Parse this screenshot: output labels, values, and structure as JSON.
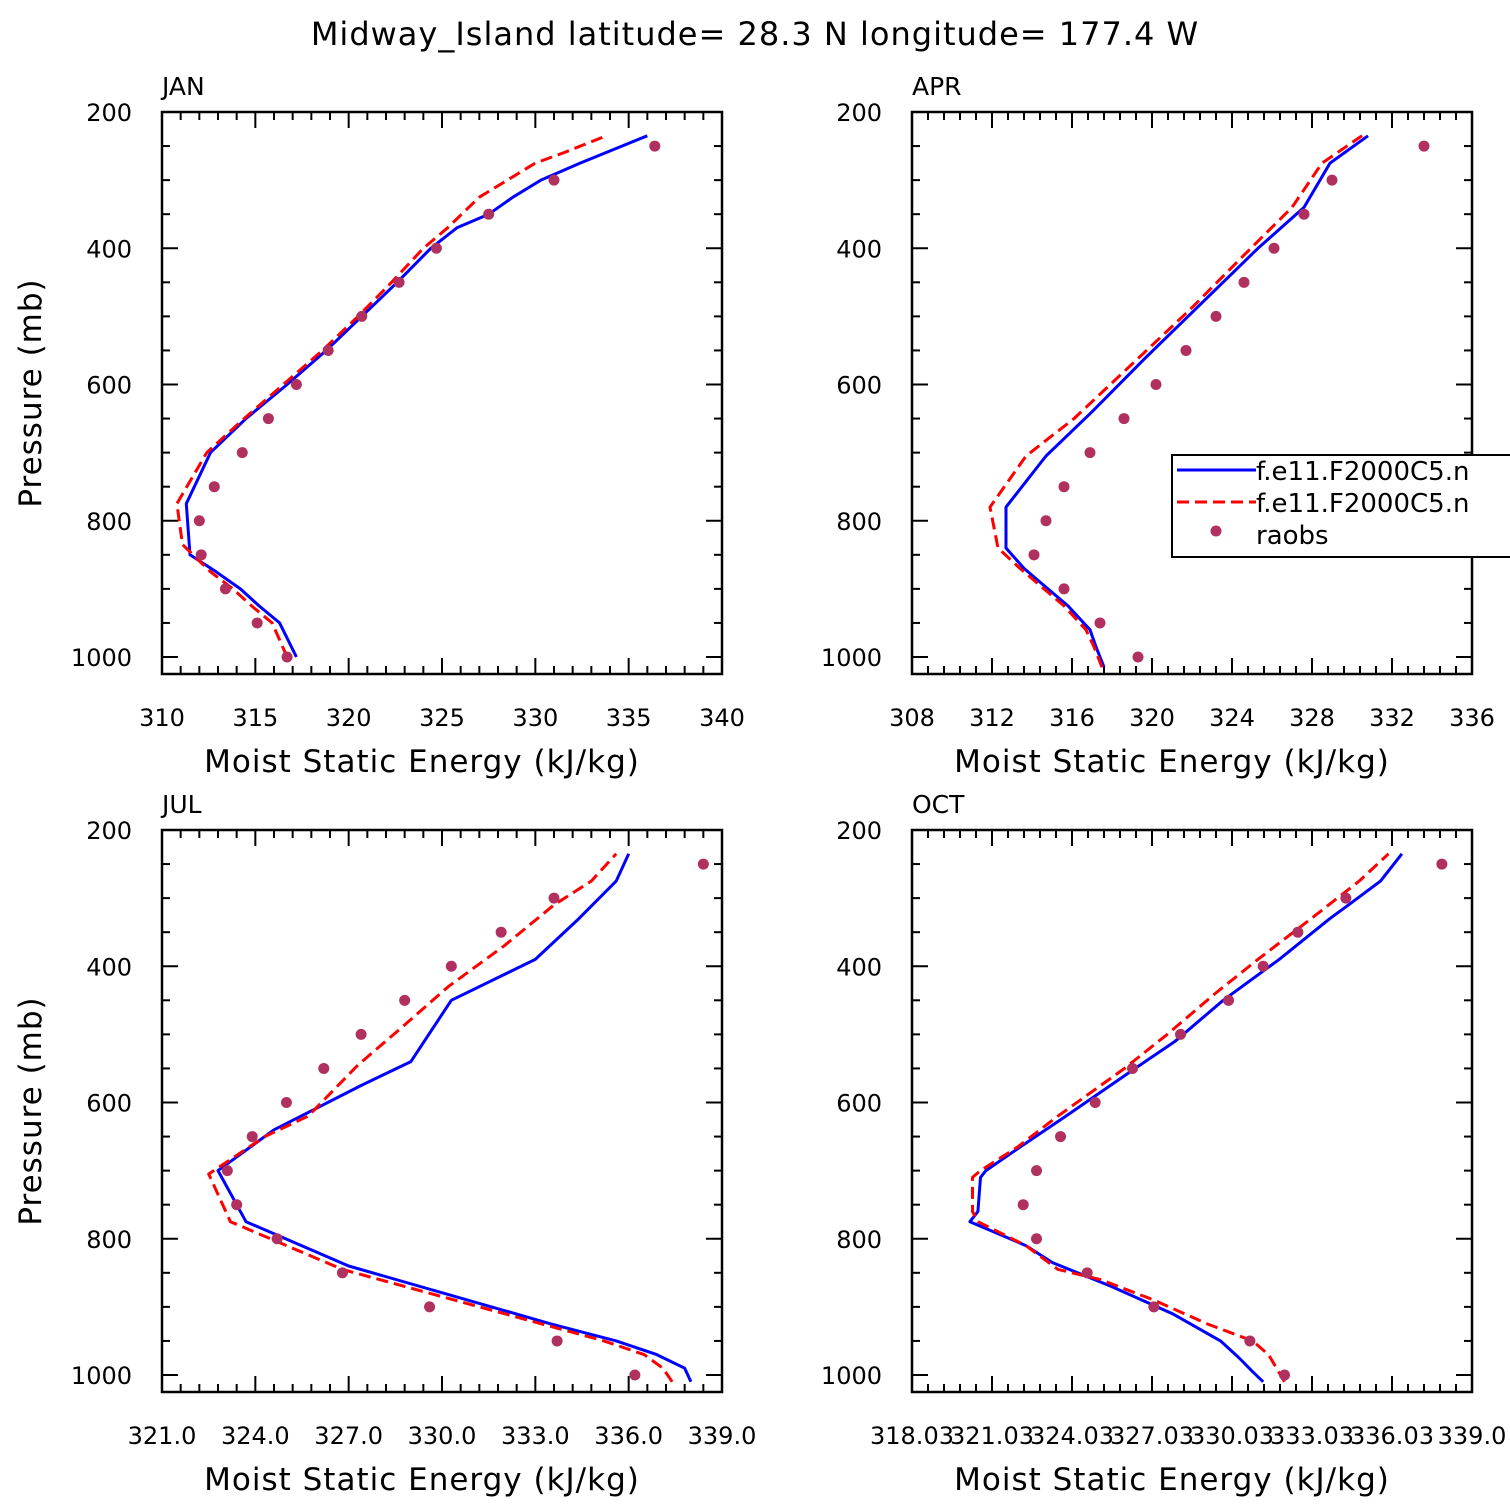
{
  "title": "Midway_Island  latitude= 28.3 N longitude= 177.4 W",
  "legend": {
    "entries": [
      {
        "label": "f.e11.F2000C5.n",
        "color": "#0000ff",
        "style": "solid"
      },
      {
        "label": "f.e11.F2000C5.n",
        "color": "#ff0000",
        "style": "dashed"
      },
      {
        "label": "raobs",
        "color": "#b03060",
        "style": "dot"
      }
    ]
  },
  "colors": {
    "model1": "#0000ff",
    "model2": "#ff0000",
    "obs": "#b03060"
  },
  "chart_data": [
    {
      "type": "line",
      "label": "JAN",
      "xlabel": "Moist Static Energy (kJ/kg)",
      "ylabel": "Pressure (mb)",
      "xlim": [
        310,
        340
      ],
      "ylim": [
        1025,
        200
      ],
      "xticks": [
        "310",
        "315",
        "320",
        "325",
        "330",
        "335",
        "340"
      ],
      "yticks": [
        "200",
        "400",
        "600",
        "800",
        "1000"
      ],
      "series": [
        {
          "values": [
            [
              317.2,
              1000
            ],
            [
              316.3,
              950
            ],
            [
              315.2,
              925
            ],
            [
              314.2,
              900
            ],
            [
              312.9,
              875
            ],
            [
              311.5,
              850
            ],
            [
              311.3,
              775
            ],
            [
              312.6,
              700
            ],
            [
              314.5,
              650
            ],
            [
              316.7,
              600
            ],
            [
              318.8,
              550
            ],
            [
              320.7,
              500
            ],
            [
              322.6,
              450
            ],
            [
              324.4,
              400
            ],
            [
              325.8,
              370
            ],
            [
              327.5,
              350
            ],
            [
              328.8,
              325
            ],
            [
              330.3,
              300
            ],
            [
              332.4,
              275
            ],
            [
              336,
              235
            ]
          ]
        },
        {
          "values": [
            [
              316.7,
              1000
            ],
            [
              315.9,
              950
            ],
            [
              314.8,
              925
            ],
            [
              313.8,
              900
            ],
            [
              312.6,
              875
            ],
            [
              311.1,
              835
            ],
            [
              310.8,
              775
            ],
            [
              312.4,
              700
            ],
            [
              314.4,
              650
            ],
            [
              316.5,
              600
            ],
            [
              318.6,
              550
            ],
            [
              320.5,
              500
            ],
            [
              322.3,
              450
            ],
            [
              324,
              400
            ],
            [
              325.3,
              370
            ],
            [
              327,
              325
            ],
            [
              330,
              275
            ],
            [
              331.5,
              260
            ],
            [
              333.8,
              235
            ]
          ]
        },
        {
          "values": [
            [
              316.7,
              1000
            ],
            [
              315.1,
              950
            ],
            [
              313.4,
              900
            ],
            [
              312.1,
              850
            ],
            [
              312,
              800
            ],
            [
              312.8,
              750
            ],
            [
              314.3,
              700
            ],
            [
              315.7,
              650
            ],
            [
              317.2,
              600
            ],
            [
              318.9,
              550
            ],
            [
              320.7,
              500
            ],
            [
              322.7,
              450
            ],
            [
              324.7,
              400
            ],
            [
              327.5,
              350
            ],
            [
              331,
              300
            ],
            [
              336.4,
              250
            ]
          ]
        }
      ]
    },
    {
      "type": "line",
      "label": "APR",
      "xlabel": "Moist Static Energy (kJ/kg)",
      "ylabel": "",
      "xlim": [
        308,
        336
      ],
      "ylim": [
        1025,
        200
      ],
      "xticks": [
        "308",
        "312",
        "316",
        "320",
        "324",
        "328",
        "332",
        "336"
      ],
      "yticks": [
        "200",
        "400",
        "600",
        "800",
        "1000"
      ],
      "series": [
        {
          "values": [
            [
              317.6,
              1015
            ],
            [
              317.2,
              985
            ],
            [
              316.9,
              960
            ],
            [
              315.8,
              925
            ],
            [
              314.6,
              895
            ],
            [
              313.6,
              870
            ],
            [
              312.7,
              840
            ],
            [
              312.7,
              780
            ],
            [
              314.7,
              705
            ],
            [
              317,
              640
            ],
            [
              319.7,
              560
            ],
            [
              322.5,
              480
            ],
            [
              325.3,
              400
            ],
            [
              327.6,
              340
            ],
            [
              328.9,
              275
            ],
            [
              330.8,
              235
            ]
          ]
        },
        {
          "values": [
            [
              317.5,
              1015
            ],
            [
              317.1,
              985
            ],
            [
              316.7,
              960
            ],
            [
              315.6,
              925
            ],
            [
              314.4,
              895
            ],
            [
              313.4,
              870
            ],
            [
              312.3,
              840
            ],
            [
              311.9,
              780
            ],
            [
              313.7,
              705
            ],
            [
              316.1,
              650
            ],
            [
              319,
              570
            ],
            [
              321.9,
              490
            ],
            [
              324.6,
              410
            ],
            [
              327,
              340
            ],
            [
              328.5,
              275
            ],
            [
              330.5,
              235
            ]
          ]
        },
        {
          "values": [
            [
              319.3,
              1000
            ],
            [
              317.4,
              950
            ],
            [
              315.6,
              900
            ],
            [
              314.1,
              850
            ],
            [
              314.7,
              800
            ],
            [
              315.6,
              750
            ],
            [
              316.9,
              700
            ],
            [
              318.6,
              650
            ],
            [
              320.2,
              600
            ],
            [
              321.7,
              550
            ],
            [
              323.2,
              500
            ],
            [
              324.6,
              450
            ],
            [
              326.1,
              400
            ],
            [
              327.6,
              350
            ],
            [
              329,
              300
            ],
            [
              333.6,
              250
            ]
          ]
        }
      ]
    },
    {
      "type": "line",
      "label": "JUL",
      "xlabel": "Moist Static Energy (kJ/kg)",
      "ylabel": "Pressure (mb)",
      "xlim": [
        321,
        339
      ],
      "ylim": [
        1025,
        200
      ],
      "xticks": [
        "321.0",
        "324.0",
        "327.0",
        "330.0",
        "333.0",
        "336.0",
        "339.0"
      ],
      "yticks": [
        "200",
        "400",
        "600",
        "800",
        "1000"
      ],
      "series": [
        {
          "values": [
            [
              338,
              1010
            ],
            [
              337.8,
              990
            ],
            [
              336.9,
              970
            ],
            [
              335.6,
              950
            ],
            [
              333.5,
              925
            ],
            [
              327,
              840
            ],
            [
              323.7,
              775
            ],
            [
              322.8,
              700
            ],
            [
              324.6,
              640
            ],
            [
              325.9,
              610
            ],
            [
              327.4,
              575
            ],
            [
              329,
              540
            ],
            [
              330.3,
              450
            ],
            [
              333,
              390
            ],
            [
              334.4,
              330
            ],
            [
              335.6,
              275
            ],
            [
              336,
              235
            ]
          ]
        },
        {
          "values": [
            [
              337.4,
              1010
            ],
            [
              337.1,
              990
            ],
            [
              336.5,
              970
            ],
            [
              335.2,
              950
            ],
            [
              333.2,
              925
            ],
            [
              326.8,
              845
            ],
            [
              323.2,
              775
            ],
            [
              322.5,
              705
            ],
            [
              324.3,
              650
            ],
            [
              325.7,
              620
            ],
            [
              327.3,
              545
            ],
            [
              328.7,
              490
            ],
            [
              330.2,
              430
            ],
            [
              332,
              370
            ],
            [
              333.6,
              310
            ],
            [
              334.8,
              275
            ],
            [
              335.6,
              235
            ]
          ]
        },
        {
          "values": [
            [
              336.2,
              1000
            ],
            [
              333.7,
              950
            ],
            [
              329.6,
              900
            ],
            [
              326.8,
              850
            ],
            [
              324.7,
              800
            ],
            [
              323.4,
              750
            ],
            [
              323.1,
              700
            ],
            [
              323.9,
              650
            ],
            [
              325,
              600
            ],
            [
              326.2,
              550
            ],
            [
              327.4,
              500
            ],
            [
              328.8,
              450
            ],
            [
              330.3,
              400
            ],
            [
              331.9,
              350
            ],
            [
              333.6,
              300
            ],
            [
              338.4,
              250
            ]
          ]
        }
      ]
    },
    {
      "type": "line",
      "label": "OCT",
      "xlabel": "Moist Static Energy (kJ/kg)",
      "ylabel": "",
      "xlim": [
        318.03,
        339.03
      ],
      "ylim": [
        1025,
        200
      ],
      "xticks": [
        "318.03",
        "321.03",
        "324.03",
        "327.03",
        "330.03",
        "333.03",
        "336.03",
        "339.0"
      ],
      "yticks": [
        "200",
        "400",
        "600",
        "800",
        "1000"
      ],
      "series": [
        {
          "values": [
            [
              331.2,
              1010
            ],
            [
              330.8,
              995
            ],
            [
              330.3,
              975
            ],
            [
              329.6,
              950
            ],
            [
              327.8,
              910
            ],
            [
              325.5,
              870
            ],
            [
              323.3,
              835
            ],
            [
              322.3,
              810
            ],
            [
              320.2,
              775
            ],
            [
              320.5,
              760
            ],
            [
              320.6,
              710
            ],
            [
              320.8,
              700
            ],
            [
              322.1,
              665
            ],
            [
              323.8,
              620
            ],
            [
              326.4,
              550
            ],
            [
              327.9,
              510
            ],
            [
              329.7,
              450
            ],
            [
              331.8,
              390
            ],
            [
              333.7,
              330
            ],
            [
              334.4,
              310
            ],
            [
              335.6,
              275
            ],
            [
              336.4,
              235
            ]
          ]
        },
        {
          "values": [
            [
              332,
              1010
            ],
            [
              331.7,
              990
            ],
            [
              331.4,
              970
            ],
            [
              330.8,
              950
            ],
            [
              329.1,
              925
            ],
            [
              327.1,
              890
            ],
            [
              325.1,
              860
            ],
            [
              323.5,
              845
            ],
            [
              322.3,
              810
            ],
            [
              320.5,
              775
            ],
            [
              320.3,
              760
            ],
            [
              320.3,
              710
            ],
            [
              320.6,
              700
            ],
            [
              322,
              665
            ],
            [
              323.5,
              620
            ],
            [
              326,
              550
            ],
            [
              327.6,
              500
            ],
            [
              329.4,
              440
            ],
            [
              331,
              390
            ],
            [
              333,
              330
            ],
            [
              334.8,
              275
            ],
            [
              335.9,
              235
            ]
          ]
        },
        {
          "values": [
            [
              332,
              1000
            ],
            [
              330.7,
              950
            ],
            [
              327.1,
              900
            ],
            [
              324.6,
              850
            ],
            [
              322.7,
              800
            ],
            [
              322.2,
              750
            ],
            [
              322.7,
              700
            ],
            [
              323.6,
              650
            ],
            [
              324.9,
              600
            ],
            [
              326.3,
              550
            ],
            [
              328.1,
              500
            ],
            [
              329.9,
              450
            ],
            [
              331.2,
              400
            ],
            [
              332.5,
              350
            ],
            [
              334.3,
              300
            ],
            [
              337.9,
              250
            ]
          ]
        }
      ]
    }
  ]
}
